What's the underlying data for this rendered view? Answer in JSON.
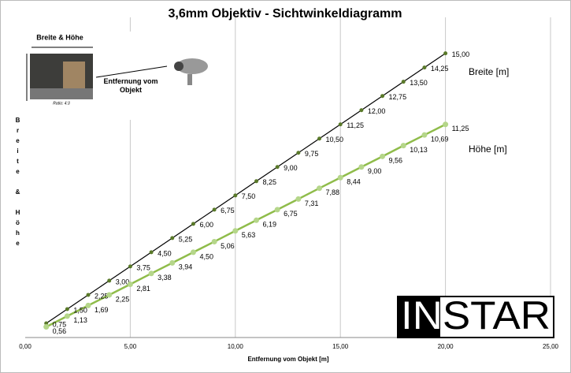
{
  "chart_data": {
    "type": "line",
    "title": "3,6mm Objektiv - Sichtwinkeldiagramm",
    "x_label": "Entfernung vom Objekt [m]",
    "y_label": "Breite & Höhe",
    "x": [
      1,
      2,
      3,
      4,
      5,
      6,
      7,
      8,
      9,
      10,
      11,
      12,
      13,
      14,
      15,
      16,
      17,
      18,
      19,
      20
    ],
    "series": [
      {
        "name": "Breite [m]",
        "color": "#000000",
        "marker_color": "#5a7a2a",
        "values": [
          0.75,
          1.5,
          2.25,
          3,
          3.75,
          4.5,
          5.25,
          6,
          6.75,
          7.5,
          8.25,
          9,
          9.75,
          10.5,
          11.25,
          12,
          12.75,
          13.5,
          14.25,
          15
        ],
        "value_labels": [
          "0,75",
          "1,50",
          "2,25",
          "3,00",
          "3,75",
          "4,50",
          "5,25",
          "6,00",
          "6,75",
          "7,50",
          "8,25",
          "9,00",
          "9,75",
          "10,50",
          "11,25",
          "12,00",
          "12,75",
          "13,50",
          "14,25",
          "15,00"
        ]
      },
      {
        "name": "Höhe [m]",
        "color": "#8fbc4a",
        "marker_color": "#b5d68a",
        "values": [
          0.56,
          1.13,
          1.69,
          2.25,
          2.81,
          3.38,
          3.94,
          4.5,
          5.06,
          5.63,
          6.19,
          6.75,
          7.31,
          7.88,
          8.44,
          9,
          9.56,
          10.13,
          10.69,
          11.25
        ],
        "value_labels": [
          "0,56",
          "1,13",
          "1,69",
          "2,25",
          "2,81",
          "3,38",
          "3,94",
          "4,50",
          "5,06",
          "5,63",
          "6,19",
          "6,75",
          "7,31",
          "7,88",
          "8,44",
          "9,00",
          "9,56",
          "10,13",
          "10,69",
          "11,25"
        ]
      }
    ],
    "xlim": [
      0,
      25
    ],
    "xticks": [
      {
        "value": 0,
        "label": "0,00"
      },
      {
        "value": 5,
        "label": "5,00"
      },
      {
        "value": 10,
        "label": "10,00"
      },
      {
        "value": 15,
        "label": "15,00"
      },
      {
        "value": 20,
        "label": "20,00"
      },
      {
        "value": 25,
        "label": "25,00"
      }
    ],
    "ylim": [
      0,
      16.9
    ],
    "grid": true,
    "inset": {
      "size_label": "Breite & Höhe",
      "distance_label": "Entfernung vom Objekt",
      "ratio_label": "Ratio: 4:3"
    },
    "logo": "INSTAR"
  }
}
